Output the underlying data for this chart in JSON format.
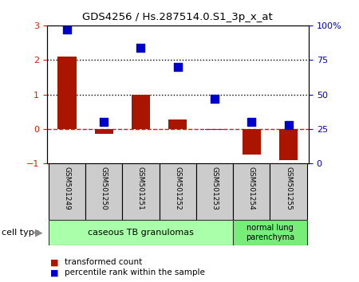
{
  "title": "GDS4256 / Hs.287514.0.S1_3p_x_at",
  "samples": [
    "GSM501249",
    "GSM501250",
    "GSM501251",
    "GSM501252",
    "GSM501253",
    "GSM501254",
    "GSM501255"
  ],
  "transformed_count": [
    2.1,
    -0.15,
    1.0,
    0.28,
    -0.02,
    -0.75,
    -0.9
  ],
  "percentile_rank": [
    97,
    30,
    84,
    70,
    47,
    30,
    28
  ],
  "ylim_left": [
    -1,
    3
  ],
  "ylim_right": [
    0,
    100
  ],
  "yticks_left": [
    -1,
    0,
    1,
    2,
    3
  ],
  "yticks_right": [
    0,
    25,
    50,
    75,
    100
  ],
  "yticklabels_right": [
    "0",
    "25",
    "50",
    "75",
    "100%"
  ],
  "hlines": [
    0,
    1,
    2
  ],
  "hline_styles": [
    "dashed",
    "dotted",
    "dotted"
  ],
  "hline_colors": [
    "#cc2200",
    "#000000",
    "#000000"
  ],
  "bar_color": "#aa1500",
  "dot_color": "#0000cc",
  "bar_width": 0.5,
  "dot_size": 45,
  "bg_color": "#ffffff",
  "plot_bg_color": "#ffffff",
  "spine_color": "#000000",
  "tick_label_color_left": "#cc2200",
  "tick_label_color_right": "#0000cc",
  "group1_color": "#aaffaa",
  "group2_color": "#77ee77",
  "group1_label": "caseous TB granulomas",
  "group2_label": "normal lung\nparenchyma",
  "cell_type_label": "cell type",
  "legend_entries": [
    {
      "color": "#aa1500",
      "label": "transformed count"
    },
    {
      "color": "#0000cc",
      "label": "percentile rank within the sample"
    }
  ]
}
